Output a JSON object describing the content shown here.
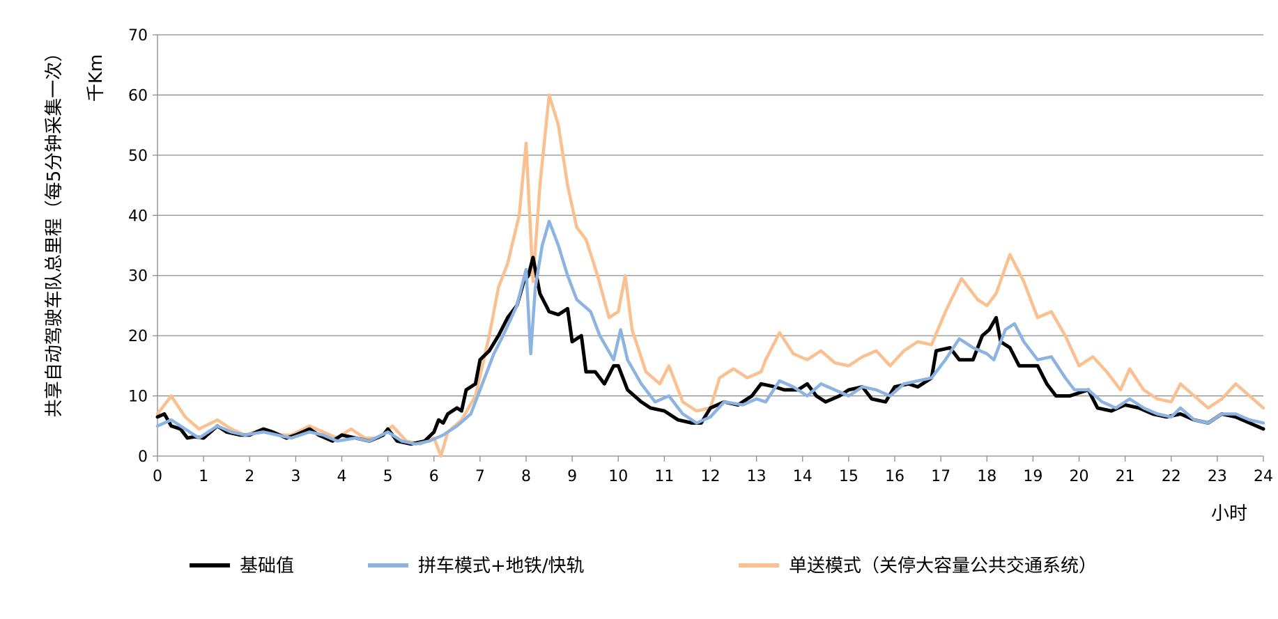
{
  "chart_data": {
    "type": "line",
    "ylabel_main": "共享自动驾驶车队总里程（每5分钟采集一次）",
    "ylabel_unit": "千Km",
    "xlabel": "小时",
    "xlim": [
      0,
      24
    ],
    "ylim": [
      0,
      70
    ],
    "x_ticks": [
      0,
      1,
      2,
      3,
      4,
      5,
      6,
      7,
      8,
      9,
      10,
      11,
      12,
      13,
      14,
      15,
      16,
      17,
      18,
      19,
      20,
      21,
      22,
      23,
      24
    ],
    "y_ticks": [
      0,
      10,
      20,
      30,
      40,
      50,
      60,
      70
    ],
    "grid": true,
    "legend_position": "bottom",
    "series": [
      {
        "name": "基础值",
        "color": "#000000",
        "points": [
          [
            0,
            6.5
          ],
          [
            0.15,
            7
          ],
          [
            0.3,
            5
          ],
          [
            0.5,
            4.5
          ],
          [
            0.65,
            3
          ],
          [
            0.8,
            3.2
          ],
          [
            1,
            3
          ],
          [
            1.3,
            5
          ],
          [
            1.5,
            4
          ],
          [
            1.8,
            3.5
          ],
          [
            2,
            3.5
          ],
          [
            2.3,
            4.5
          ],
          [
            2.5,
            4
          ],
          [
            2.8,
            3
          ],
          [
            3,
            3.5
          ],
          [
            3.3,
            4.5
          ],
          [
            3.5,
            3.5
          ],
          [
            3.8,
            2.5
          ],
          [
            4,
            3.5
          ],
          [
            4.3,
            3
          ],
          [
            4.6,
            2.5
          ],
          [
            4.9,
            3.5
          ],
          [
            5,
            4.5
          ],
          [
            5.2,
            2.5
          ],
          [
            5.5,
            2
          ],
          [
            5.8,
            2.5
          ],
          [
            6,
            4
          ],
          [
            6.1,
            6
          ],
          [
            6.2,
            5.5
          ],
          [
            6.3,
            7
          ],
          [
            6.5,
            8
          ],
          [
            6.6,
            7.5
          ],
          [
            6.7,
            11
          ],
          [
            6.9,
            12
          ],
          [
            7,
            16
          ],
          [
            7.2,
            17.5
          ],
          [
            7.4,
            20
          ],
          [
            7.6,
            23
          ],
          [
            7.8,
            25
          ],
          [
            7.95,
            29
          ],
          [
            8.05,
            30
          ],
          [
            8.15,
            33
          ],
          [
            8.3,
            27
          ],
          [
            8.5,
            24
          ],
          [
            8.7,
            23.5
          ],
          [
            8.9,
            24.5
          ],
          [
            9,
            19
          ],
          [
            9.2,
            20
          ],
          [
            9.3,
            14
          ],
          [
            9.5,
            14
          ],
          [
            9.7,
            12
          ],
          [
            9.9,
            15
          ],
          [
            10,
            15
          ],
          [
            10.2,
            11
          ],
          [
            10.5,
            9
          ],
          [
            10.7,
            8
          ],
          [
            11,
            7.5
          ],
          [
            11.3,
            6
          ],
          [
            11.6,
            5.5
          ],
          [
            11.8,
            5.5
          ],
          [
            12,
            8
          ],
          [
            12.3,
            9
          ],
          [
            12.6,
            8.5
          ],
          [
            12.9,
            10
          ],
          [
            13.1,
            12
          ],
          [
            13.4,
            11.5
          ],
          [
            13.6,
            11
          ],
          [
            13.9,
            11
          ],
          [
            14.1,
            12
          ],
          [
            14.3,
            10
          ],
          [
            14.5,
            9
          ],
          [
            14.8,
            10
          ],
          [
            15,
            11
          ],
          [
            15.3,
            11.5
          ],
          [
            15.5,
            9.5
          ],
          [
            15.8,
            9
          ],
          [
            16,
            11.5
          ],
          [
            16.3,
            12
          ],
          [
            16.5,
            11.5
          ],
          [
            16.8,
            13
          ],
          [
            16.9,
            17.5
          ],
          [
            17.2,
            18
          ],
          [
            17.4,
            16
          ],
          [
            17.7,
            16
          ],
          [
            17.9,
            20
          ],
          [
            18.05,
            21
          ],
          [
            18.2,
            23
          ],
          [
            18.3,
            19
          ],
          [
            18.5,
            18
          ],
          [
            18.7,
            15
          ],
          [
            18.9,
            15
          ],
          [
            19.1,
            15
          ],
          [
            19.3,
            12
          ],
          [
            19.5,
            10
          ],
          [
            19.8,
            10
          ],
          [
            20,
            10.5
          ],
          [
            20.2,
            11
          ],
          [
            20.4,
            8
          ],
          [
            20.7,
            7.5
          ],
          [
            21,
            8.5
          ],
          [
            21.3,
            8
          ],
          [
            21.6,
            7
          ],
          [
            21.9,
            6.5
          ],
          [
            22.2,
            7
          ],
          [
            22.5,
            6
          ],
          [
            22.8,
            5.5
          ],
          [
            23.1,
            7
          ],
          [
            23.4,
            6.5
          ],
          [
            23.7,
            5.5
          ],
          [
            24,
            4.5
          ]
        ]
      },
      {
        "name": "拼车模式+地铁/快轨",
        "color": "#8db3e2",
        "points": [
          [
            0,
            5
          ],
          [
            0.3,
            6
          ],
          [
            0.6,
            4.5
          ],
          [
            0.9,
            3
          ],
          [
            1.3,
            5
          ],
          [
            1.6,
            4
          ],
          [
            1.9,
            3.5
          ],
          [
            2.3,
            4
          ],
          [
            2.6,
            3.5
          ],
          [
            2.9,
            3
          ],
          [
            3.3,
            4
          ],
          [
            3.6,
            3.5
          ],
          [
            3.9,
            2.5
          ],
          [
            4.3,
            3
          ],
          [
            4.6,
            2.5
          ],
          [
            5,
            4
          ],
          [
            5.3,
            2.5
          ],
          [
            5.6,
            2
          ],
          [
            5.9,
            2.5
          ],
          [
            6.2,
            3.5
          ],
          [
            6.5,
            5
          ],
          [
            6.8,
            7
          ],
          [
            7,
            11
          ],
          [
            7.3,
            17
          ],
          [
            7.5,
            20
          ],
          [
            7.8,
            25
          ],
          [
            8,
            31
          ],
          [
            8.1,
            17
          ],
          [
            8.2,
            28
          ],
          [
            8.35,
            35
          ],
          [
            8.5,
            39
          ],
          [
            8.7,
            35
          ],
          [
            8.9,
            30
          ],
          [
            9.1,
            26
          ],
          [
            9.4,
            24
          ],
          [
            9.6,
            20
          ],
          [
            9.9,
            16
          ],
          [
            10.05,
            21
          ],
          [
            10.2,
            16
          ],
          [
            10.5,
            12
          ],
          [
            10.8,
            9
          ],
          [
            11.1,
            10
          ],
          [
            11.4,
            7
          ],
          [
            11.7,
            5.5
          ],
          [
            12,
            6.5
          ],
          [
            12.3,
            9
          ],
          [
            12.7,
            8.5
          ],
          [
            13,
            9.5
          ],
          [
            13.2,
            9
          ],
          [
            13.5,
            12.5
          ],
          [
            13.8,
            11.5
          ],
          [
            14.1,
            10
          ],
          [
            14.4,
            12
          ],
          [
            14.7,
            11
          ],
          [
            15,
            10
          ],
          [
            15.3,
            11.5
          ],
          [
            15.6,
            11
          ],
          [
            15.9,
            10
          ],
          [
            16.2,
            12
          ],
          [
            16.5,
            12.5
          ],
          [
            16.8,
            13
          ],
          [
            17.1,
            16
          ],
          [
            17.4,
            19.5
          ],
          [
            17.7,
            18
          ],
          [
            18,
            17
          ],
          [
            18.15,
            16
          ],
          [
            18.4,
            21
          ],
          [
            18.6,
            22
          ],
          [
            18.8,
            19
          ],
          [
            19.1,
            16
          ],
          [
            19.4,
            16.5
          ],
          [
            19.7,
            13
          ],
          [
            19.9,
            11
          ],
          [
            20.2,
            11
          ],
          [
            20.5,
            9
          ],
          [
            20.8,
            8
          ],
          [
            21.1,
            9.5
          ],
          [
            21.4,
            8
          ],
          [
            21.7,
            7
          ],
          [
            22,
            6.5
          ],
          [
            22.2,
            8
          ],
          [
            22.5,
            6
          ],
          [
            22.8,
            5.5
          ],
          [
            23.1,
            7
          ],
          [
            23.4,
            7
          ],
          [
            23.7,
            6
          ],
          [
            24,
            5.5
          ]
        ]
      },
      {
        "name": "单送模式（关停大容量公共交通系统）",
        "color": "#fac090",
        "points": [
          [
            0,
            7
          ],
          [
            0.3,
            10
          ],
          [
            0.6,
            6.5
          ],
          [
            0.9,
            4.5
          ],
          [
            1.3,
            6
          ],
          [
            1.6,
            4.5
          ],
          [
            1.9,
            3.5
          ],
          [
            2.3,
            4.5
          ],
          [
            2.6,
            3.5
          ],
          [
            2.9,
            3.5
          ],
          [
            3.3,
            5
          ],
          [
            3.6,
            4
          ],
          [
            3.9,
            3
          ],
          [
            4.2,
            4.5
          ],
          [
            4.5,
            3
          ],
          [
            4.8,
            3
          ],
          [
            5.1,
            5
          ],
          [
            5.4,
            2.5
          ],
          [
            5.7,
            2
          ],
          [
            6,
            3
          ],
          [
            6.15,
            0
          ],
          [
            6.3,
            4
          ],
          [
            6.6,
            6
          ],
          [
            6.9,
            10
          ],
          [
            7.2,
            20
          ],
          [
            7.4,
            28
          ],
          [
            7.6,
            32
          ],
          [
            7.85,
            40
          ],
          [
            8,
            52
          ],
          [
            8.15,
            29
          ],
          [
            8.3,
            45
          ],
          [
            8.5,
            60
          ],
          [
            8.7,
            55
          ],
          [
            8.9,
            45
          ],
          [
            9.1,
            38
          ],
          [
            9.3,
            36
          ],
          [
            9.55,
            30
          ],
          [
            9.8,
            23
          ],
          [
            10,
            24
          ],
          [
            10.15,
            30
          ],
          [
            10.3,
            21
          ],
          [
            10.6,
            14
          ],
          [
            10.9,
            12
          ],
          [
            11.1,
            15
          ],
          [
            11.4,
            9
          ],
          [
            11.7,
            7.5
          ],
          [
            12,
            8
          ],
          [
            12.2,
            13
          ],
          [
            12.5,
            14.5
          ],
          [
            12.8,
            13
          ],
          [
            13.1,
            14
          ],
          [
            13.2,
            16
          ],
          [
            13.5,
            20.5
          ],
          [
            13.8,
            17
          ],
          [
            14.1,
            16
          ],
          [
            14.4,
            17.5
          ],
          [
            14.7,
            15.5
          ],
          [
            15,
            15
          ],
          [
            15.3,
            16.5
          ],
          [
            15.6,
            17.5
          ],
          [
            15.9,
            15
          ],
          [
            16.2,
            17.5
          ],
          [
            16.5,
            19
          ],
          [
            16.8,
            18.5
          ],
          [
            17.1,
            24
          ],
          [
            17.45,
            29.5
          ],
          [
            17.8,
            26
          ],
          [
            18,
            25
          ],
          [
            18.2,
            27
          ],
          [
            18.5,
            33.5
          ],
          [
            18.8,
            29
          ],
          [
            19.1,
            23
          ],
          [
            19.4,
            24
          ],
          [
            19.7,
            20
          ],
          [
            20,
            15
          ],
          [
            20.3,
            16.5
          ],
          [
            20.6,
            14
          ],
          [
            20.9,
            11
          ],
          [
            21.1,
            14.5
          ],
          [
            21.4,
            11
          ],
          [
            21.7,
            9.5
          ],
          [
            22,
            9
          ],
          [
            22.2,
            12
          ],
          [
            22.5,
            10
          ],
          [
            22.8,
            8
          ],
          [
            23.1,
            9.5
          ],
          [
            23.4,
            12
          ],
          [
            23.7,
            10
          ],
          [
            24,
            8
          ]
        ]
      }
    ]
  }
}
